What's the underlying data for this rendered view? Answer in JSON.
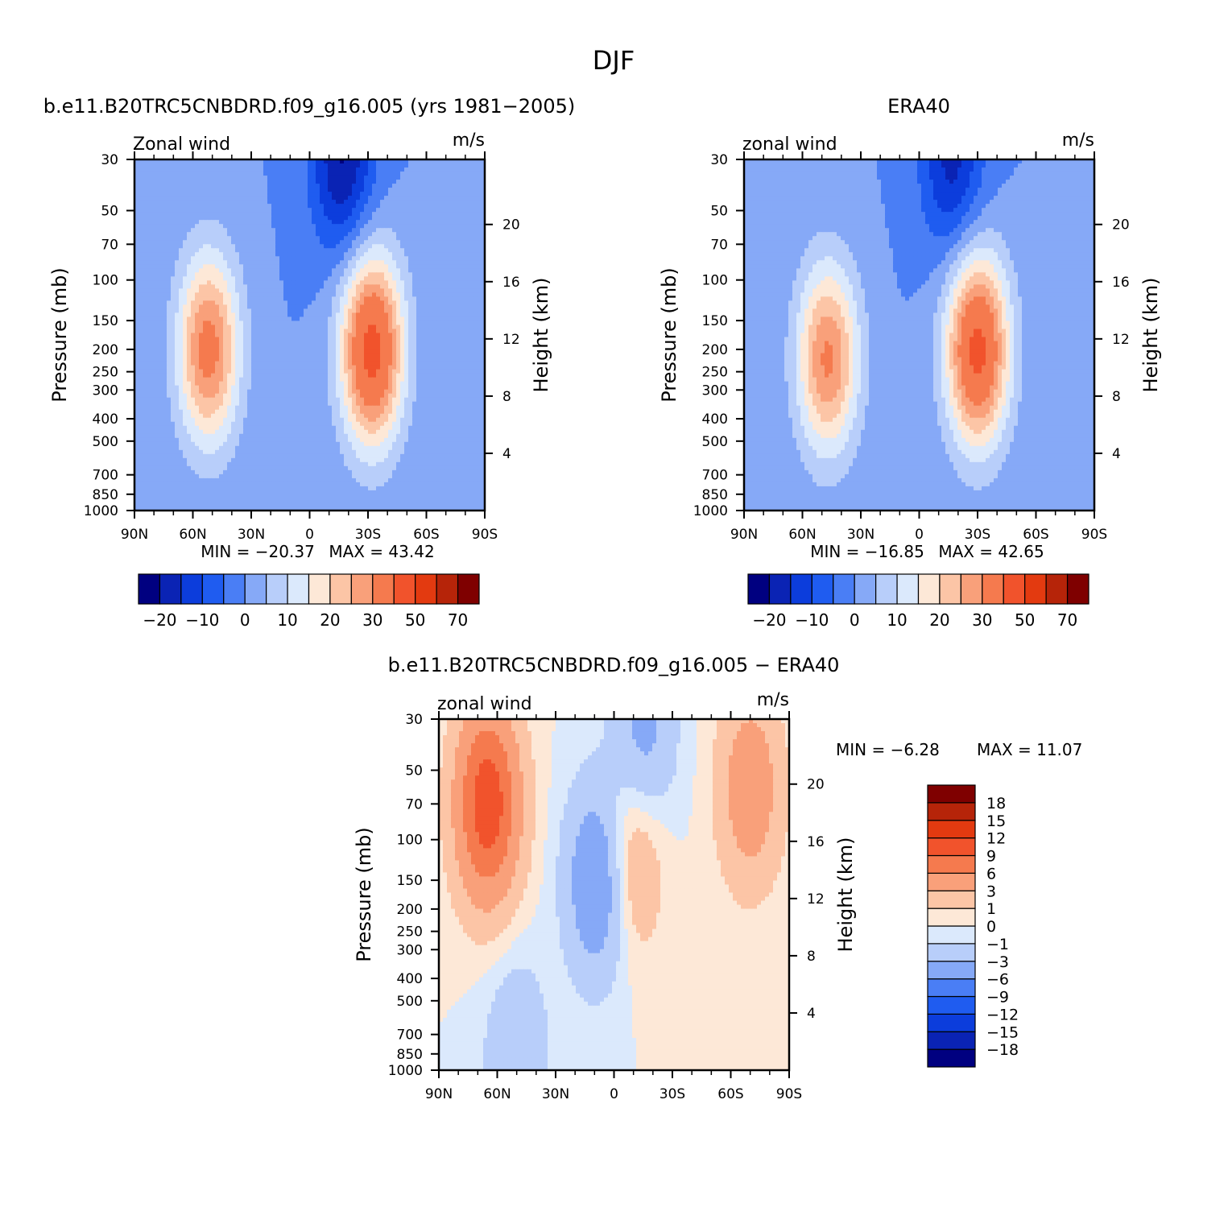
{
  "title": "DJF",
  "chart_data": [
    {
      "type": "heatmap",
      "subtitle": "b.e11.B20TRC5CNBDRD.f09_g16.005 (yrs 1981−2005)",
      "left_label": "Zonal wind",
      "right_label": "m/s",
      "ylabel": "Pressure (mb)",
      "ylabel_right": "Height (km)",
      "x_ticks": [
        "90N",
        "60N",
        "30N",
        "0",
        "30S",
        "60S",
        "90S"
      ],
      "y_ticks": [
        "30",
        "50",
        "70",
        "100",
        "150",
        "200",
        "250",
        "300",
        "400",
        "500",
        "700",
        "850",
        "1000"
      ],
      "height_ticks": [
        "20",
        "16",
        "12",
        "8",
        "4"
      ],
      "xlim": [
        "90N",
        "90S"
      ],
      "ylim": [
        1000,
        30
      ],
      "scale": "log-pressure",
      "min_text": "MIN = −20.37",
      "max_text": "MAX = 43.42",
      "min": -20.37,
      "max": 43.42,
      "levels": [
        -25,
        -20,
        -15,
        -10,
        -5,
        0,
        5,
        10,
        15,
        20,
        25,
        30,
        40,
        50,
        60,
        70,
        80
      ],
      "colorbar_labels": [
        "−20",
        "−10",
        "0",
        "10",
        "20",
        "30",
        "50",
        "70"
      ],
      "features": [
        {
          "lat": -32,
          "p": 200,
          "peak": 43.42
        },
        {
          "lat": 52,
          "p": 200,
          "peak": 33
        },
        {
          "lat": -17,
          "p": 30,
          "peak": -20.37
        }
      ]
    },
    {
      "type": "heatmap",
      "subtitle": "ERA40",
      "left_label": "zonal wind",
      "right_label": "m/s",
      "ylabel": "Pressure (mb)",
      "ylabel_right": "Height (km)",
      "x_ticks": [
        "90N",
        "60N",
        "30N",
        "0",
        "30S",
        "60S",
        "90S"
      ],
      "y_ticks": [
        "30",
        "50",
        "70",
        "100",
        "150",
        "200",
        "250",
        "300",
        "400",
        "500",
        "700",
        "850",
        "1000"
      ],
      "height_ticks": [
        "20",
        "16",
        "12",
        "8",
        "4"
      ],
      "xlim": [
        "90N",
        "90S"
      ],
      "ylim": [
        1000,
        30
      ],
      "scale": "log-pressure",
      "min_text": "MIN = −16.85",
      "max_text": "MAX = 42.65",
      "min": -16.85,
      "max": 42.65,
      "levels": [
        -25,
        -20,
        -15,
        -10,
        -5,
        0,
        5,
        10,
        15,
        20,
        25,
        30,
        40,
        50,
        60,
        70,
        80
      ],
      "colorbar_labels": [
        "−20",
        "−10",
        "0",
        "10",
        "20",
        "30",
        "50",
        "70"
      ],
      "features": [
        {
          "lat": -30,
          "p": 200,
          "peak": 42.65
        },
        {
          "lat": 47,
          "p": 220,
          "peak": 31
        },
        {
          "lat": -17,
          "p": 30,
          "peak": -16.85
        }
      ]
    },
    {
      "type": "heatmap",
      "subtitle": "b.e11.B20TRC5CNBDRD.f09_g16.005 − ERA40",
      "left_label": "zonal wind",
      "right_label": "m/s",
      "ylabel": "Pressure (mb)",
      "ylabel_right": "Height (km)",
      "x_ticks": [
        "90N",
        "60N",
        "30N",
        "0",
        "30S",
        "60S",
        "90S"
      ],
      "y_ticks": [
        "30",
        "50",
        "70",
        "100",
        "150",
        "200",
        "250",
        "300",
        "400",
        "500",
        "700",
        "850",
        "1000"
      ],
      "height_ticks": [
        "20",
        "16",
        "12",
        "8",
        "4"
      ],
      "xlim": [
        "90N",
        "90S"
      ],
      "ylim": [
        1000,
        30
      ],
      "scale": "log-pressure",
      "min_text": "MIN =   −6.28",
      "max_text": "MAX =   11.07",
      "min": -6.28,
      "max": 11.07,
      "levels": [
        -21,
        -18,
        -15,
        -12,
        -9,
        -6,
        -3,
        -1,
        0,
        1,
        3,
        6,
        9,
        12,
        15,
        18,
        21
      ],
      "colorbar_labels": [
        "18",
        "15",
        "12",
        "9",
        "6",
        "3",
        "1",
        "0",
        "−1",
        "−3",
        "−6",
        "−9",
        "−12",
        "−15",
        "−18"
      ],
      "features": [
        {
          "lat": 65,
          "p": 70,
          "peak": 11.07
        },
        {
          "lat": -70,
          "p": 60,
          "peak": 5
        },
        {
          "lat": -8,
          "p": 120,
          "peak": 4
        },
        {
          "lat": 8,
          "p": 150,
          "peak": -6.28
        },
        {
          "lat": 50,
          "p": 900,
          "peak": -3
        },
        {
          "lat": -15,
          "p": 35,
          "peak": -4
        }
      ]
    }
  ],
  "palette": [
    "#000080",
    "#0a23b4",
    "#0c3ddc",
    "#1f5cf0",
    "#4a7ef5",
    "#86a9f7",
    "#b8cefa",
    "#dbe9fc",
    "#fde8d7",
    "#fcc5a6",
    "#f9a07a",
    "#f57a4e",
    "#f1532c",
    "#e33a10",
    "#b62409",
    "#7f0000"
  ]
}
